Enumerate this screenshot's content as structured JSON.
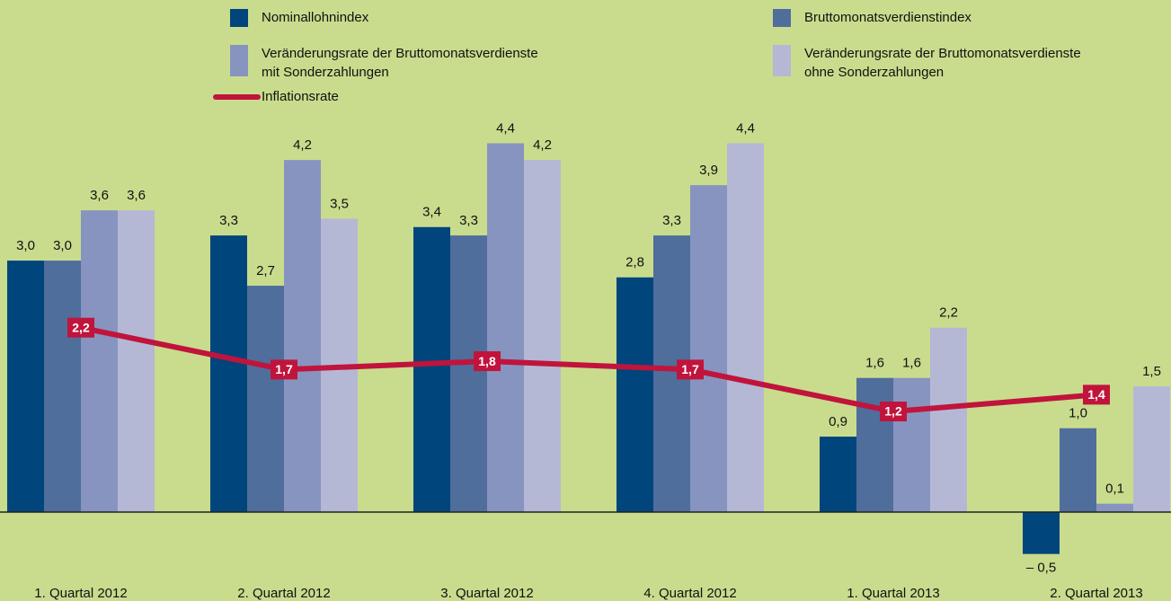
{
  "chart_data": {
    "type": "bar",
    "categories": [
      "1. Quartal 2012",
      "2. Quartal 2012",
      "3. Quartal 2012",
      "4. Quartal 2012",
      "1. Quartal 2013",
      "2. Quartal 2013"
    ],
    "series": [
      {
        "name": "Nominallohnindex",
        "color": "#00457c",
        "values": [
          3.0,
          3.3,
          3.4,
          2.8,
          0.9,
          -0.5
        ],
        "value_labels": [
          "3,0",
          "3,3",
          "3,4",
          "2,8",
          "0,9",
          "– 0,5"
        ]
      },
      {
        "name": "Bruttomonatsverdienstindex",
        "color": "#4f6e9c",
        "values": [
          3.0,
          2.7,
          3.3,
          3.3,
          1.6,
          1.0
        ],
        "value_labels": [
          "3,0",
          "2,7",
          "3,3",
          "3,3",
          "1,6",
          "1,0"
        ]
      },
      {
        "name": [
          "Veränderungsrate der Bruttomonatsverdienste",
          "mit Sonderzahlungen"
        ],
        "color": "#8794bf",
        "values": [
          3.6,
          4.2,
          4.4,
          3.9,
          1.6,
          0.1
        ],
        "value_labels": [
          "3,6",
          "4,2",
          "4,4",
          "3,9",
          "1,6",
          "0,1"
        ]
      },
      {
        "name": [
          "Veränderungsrate der Bruttomonatsverdienste",
          "ohne Sonderzahlungen"
        ],
        "color": "#b4b8d5",
        "values": [
          3.6,
          3.5,
          4.2,
          4.4,
          2.2,
          1.5
        ],
        "value_labels": [
          "3,6",
          "3,5",
          "4,2",
          "4,4",
          "2,2",
          "1,5"
        ]
      },
      {
        "name": "Inflationsrate",
        "type": "line",
        "color": "#c0143c",
        "values": [
          2.2,
          1.7,
          1.8,
          1.7,
          1.2,
          1.4
        ],
        "value_labels": [
          "2,2",
          "1,7",
          "1,8",
          "1,7",
          "1,2",
          "1,4"
        ]
      }
    ],
    "ylim": [
      -0.7,
      5.3
    ]
  }
}
